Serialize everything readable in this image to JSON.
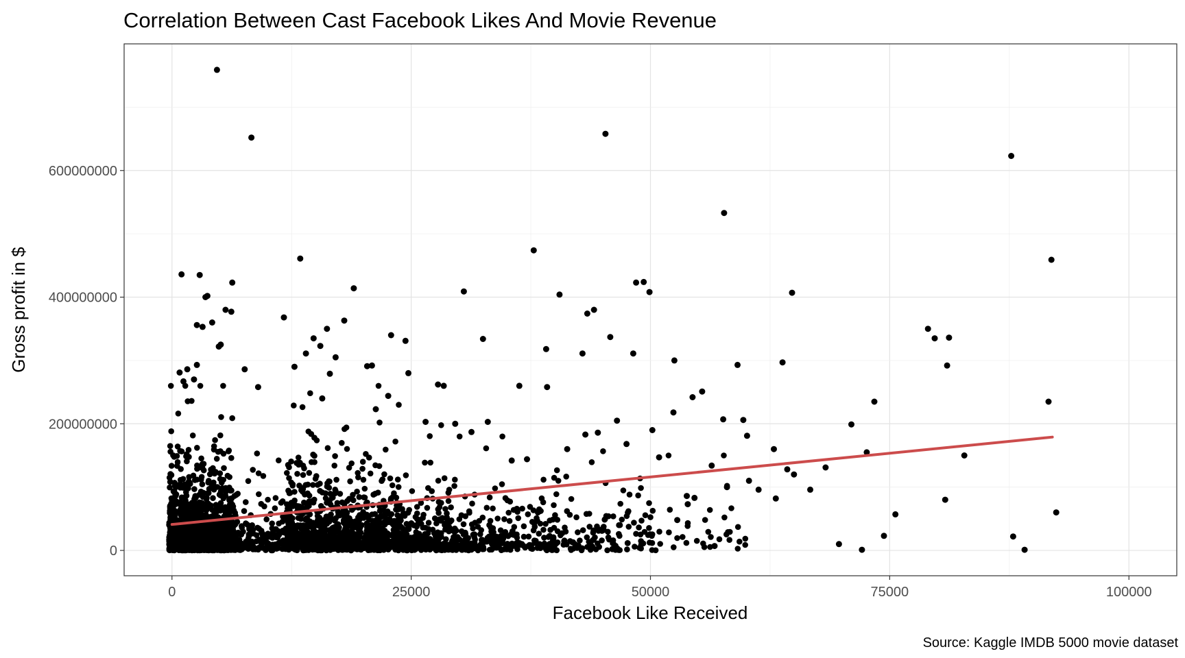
{
  "chart_data": {
    "type": "scatter",
    "title": "Correlation Between Cast Facebook Likes And Movie Revenue",
    "xlabel": "Facebook Like Received",
    "ylabel": "Gross profit in $",
    "caption": "Source: Kaggle IMDB 5000 movie dataset",
    "xlim": [
      -5000,
      105000
    ],
    "ylim": [
      -40000000,
      800000000
    ],
    "x_ticks": [
      0,
      25000,
      50000,
      75000,
      100000
    ],
    "x_tick_labels": [
      "0",
      "25000",
      "50000",
      "75000",
      "100000"
    ],
    "y_ticks": [
      0,
      200000000,
      400000000,
      600000000
    ],
    "y_tick_labels": [
      "0",
      "200000000",
      "400000000",
      "600000000"
    ],
    "grid": true,
    "point_color": "#000000",
    "trend_color": "#cc4c4c",
    "trend_line": {
      "x": [
        0,
        92000
      ],
      "y": [
        41000000,
        179000000
      ]
    },
    "outliers": {
      "x": [
        4700,
        8300,
        45300,
        87700,
        57700,
        91900,
        13400,
        37800,
        6300,
        19000,
        30500,
        40500,
        48500,
        49300,
        49900,
        64800,
        44100,
        43400,
        3500,
        1000,
        2900,
        5600,
        6200,
        11700,
        18000,
        2600,
        3200,
        16200,
        14800,
        32500,
        45800,
        39100,
        42900,
        48200,
        52500,
        79000,
        79700,
        81200,
        81000,
        63800,
        59100,
        24700,
        28400,
        36300,
        39200,
        7600,
        9000,
        20400,
        55400,
        54400,
        71000,
        73400,
        91600,
        57600,
        59700,
        60100,
        61300,
        64300,
        62900,
        68300,
        72600,
        75600,
        80800,
        82800,
        92400,
        87900,
        89100,
        69700,
        72100,
        74400,
        56700,
        52800,
        52400,
        50900,
        53800,
        47500,
        44500,
        46500,
        33000,
        31300,
        26500,
        22900,
        24400,
        14000,
        12800,
        15500,
        17100,
        20900,
        21300,
        22600,
        16500,
        15700,
        4900,
        1600,
        2300,
        2600,
        3700,
        4200,
        5100,
        800,
        1200,
        27800,
        29600,
        35500,
        37100,
        41300,
        43200,
        50200,
        56400,
        60300,
        63100,
        65000,
        66700,
        58000,
        54600,
        53900
      ],
      "y": [
        759000000,
        652000000,
        658000000,
        623000000,
        533000000,
        459000000,
        461000000,
        474000000,
        423000000,
        414000000,
        409000000,
        404000000,
        423000000,
        424000000,
        408000000,
        407000000,
        380000000,
        374000000,
        400000000,
        436000000,
        435000000,
        380000000,
        377000000,
        368000000,
        363000000,
        356000000,
        353000000,
        350000000,
        335000000,
        334000000,
        337000000,
        318000000,
        311000000,
        311000000,
        300000000,
        350000000,
        335000000,
        336000000,
        292000000,
        297000000,
        293000000,
        280000000,
        260000000,
        260000000,
        258000000,
        286000000,
        258000000,
        291000000,
        251000000,
        242000000,
        199000000,
        235000000,
        235000000,
        207000000,
        206000000,
        181000000,
        96000000,
        128000000,
        160000000,
        131000000,
        155000000,
        57000000,
        80000000,
        150000000,
        60000000,
        22000000,
        1000000,
        10000000,
        1000000,
        23000000,
        7000000,
        48000000,
        218000000,
        147000000,
        86000000,
        168000000,
        186000000,
        205000000,
        203000000,
        187000000,
        203000000,
        340000000,
        331000000,
        311000000,
        290000000,
        323000000,
        305000000,
        292000000,
        223000000,
        244000000,
        279000000,
        240000000,
        322000000,
        286000000,
        270000000,
        293000000,
        402000000,
        360000000,
        325000000,
        281000000,
        267000000,
        262000000,
        200000000,
        142000000,
        144000000,
        160000000,
        183000000,
        190000000,
        134000000,
        110000000,
        82000000,
        120000000,
        96000000,
        100000000,
        83000000,
        73000000
      ]
    },
    "dense_clusters": [
      {
        "x_range": [
          -300,
          6500
        ],
        "count": 1400,
        "y_mean": 55000000,
        "y_scale": 45000000,
        "y_max": 260000000
      },
      {
        "x_range": [
          6500,
          12000
        ],
        "count": 160,
        "y_mean": 40000000,
        "y_scale": 35000000,
        "y_max": 180000000
      },
      {
        "x_range": [
          12000,
          24000
        ],
        "count": 950,
        "y_mean": 60000000,
        "y_scale": 50000000,
        "y_max": 260000000
      },
      {
        "x_range": [
          24000,
          30000
        ],
        "count": 260,
        "y_mean": 45000000,
        "y_scale": 40000000,
        "y_max": 200000000
      },
      {
        "x_range": [
          30000,
          40000
        ],
        "count": 240,
        "y_mean": 40000000,
        "y_scale": 38000000,
        "y_max": 180000000
      },
      {
        "x_range": [
          40000,
          50000
        ],
        "count": 120,
        "y_mean": 50000000,
        "y_scale": 45000000,
        "y_max": 200000000
      },
      {
        "x_range": [
          50000,
          60000
        ],
        "count": 40,
        "y_mean": 50000000,
        "y_scale": 40000000,
        "y_max": 150000000
      }
    ]
  }
}
